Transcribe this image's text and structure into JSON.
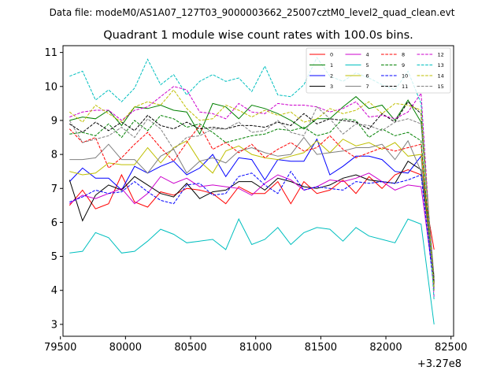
{
  "suptitle": "Data file: modeM0/AS1A07_127T03_9000003662_25007cztM0_level2_quad_clean.evt",
  "chart_data": {
    "type": "line",
    "title": "Quadrant 1 module wise count rates with 100.0s bins.",
    "xlabel": "",
    "ylabel": "",
    "x_offset_label": "+3.27e8",
    "xlim": [
      79520,
      82520
    ],
    "ylim": [
      2.65,
      11.2
    ],
    "xticks": [
      79500,
      80000,
      80500,
      81000,
      81500,
      82000,
      82500
    ],
    "yticks": [
      3,
      4,
      5,
      6,
      7,
      8,
      9,
      10,
      11
    ],
    "legend_location": "top-right",
    "x": [
      79570,
      79670,
      79770,
      79870,
      79970,
      80070,
      80170,
      80270,
      80370,
      80470,
      80570,
      80670,
      80770,
      80870,
      80970,
      81070,
      81170,
      81270,
      81370,
      81470,
      81570,
      81670,
      81770,
      81870,
      81970,
      82070,
      82170,
      82270,
      82370
    ],
    "series": [
      {
        "name": "0",
        "color": "#ff0000",
        "dash": "solid",
        "values": [
          6.5,
          6.95,
          6.4,
          6.55,
          7.4,
          6.6,
          6.45,
          6.9,
          6.8,
          7.0,
          6.95,
          6.85,
          6.55,
          7.05,
          6.85,
          6.85,
          7.2,
          6.55,
          7.2,
          6.85,
          6.95,
          7.25,
          6.85,
          7.35,
          7.0,
          7.4,
          7.55,
          7.4,
          5.2
        ]
      },
      {
        "name": "1",
        "color": "#008000",
        "dash": "solid",
        "values": [
          9.0,
          9.1,
          9.05,
          9.3,
          8.85,
          9.4,
          9.35,
          9.45,
          9.3,
          9.25,
          8.6,
          9.5,
          9.4,
          9.05,
          9.45,
          9.35,
          9.2,
          9.0,
          8.75,
          9.05,
          9.05,
          9.4,
          9.7,
          9.35,
          9.45,
          9.0,
          9.6,
          8.95,
          4.3
        ]
      },
      {
        "name": "2",
        "color": "#0000ff",
        "dash": "solid",
        "values": [
          7.2,
          7.6,
          7.3,
          7.3,
          6.95,
          7.65,
          7.45,
          7.65,
          7.8,
          7.4,
          7.6,
          8.0,
          7.35,
          7.9,
          7.85,
          7.25,
          7.85,
          7.8,
          7.8,
          8.45,
          7.4,
          7.65,
          7.95,
          7.95,
          7.85,
          7.5,
          7.45,
          7.95,
          4.0
        ]
      },
      {
        "name": "3",
        "color": "#000000",
        "dash": "solid",
        "values": [
          7.25,
          6.05,
          6.8,
          7.1,
          6.95,
          7.35,
          7.1,
          6.85,
          6.75,
          7.15,
          6.7,
          6.9,
          6.95,
          7.2,
          7.2,
          6.95,
          7.3,
          7.2,
          7.05,
          7.0,
          7.1,
          7.3,
          7.4,
          7.25,
          7.2,
          7.15,
          7.8,
          7.55,
          4.4
        ]
      },
      {
        "name": "4",
        "color": "#cc00cc",
        "dash": "solid",
        "values": [
          6.55,
          6.8,
          6.7,
          6.85,
          7.0,
          6.55,
          6.85,
          7.35,
          7.15,
          7.3,
          7.05,
          7.1,
          7.05,
          7.0,
          6.8,
          7.15,
          7.4,
          7.25,
          6.95,
          7.05,
          7.25,
          7.2,
          7.3,
          7.45,
          7.2,
          6.95,
          7.1,
          7.05,
          4.2
        ]
      },
      {
        "name": "5",
        "color": "#00bfbf",
        "dash": "solid",
        "values": [
          5.1,
          5.15,
          5.7,
          5.55,
          5.1,
          5.15,
          5.45,
          5.8,
          5.65,
          5.4,
          5.45,
          5.5,
          5.2,
          6.1,
          5.35,
          5.5,
          5.85,
          5.35,
          5.7,
          5.85,
          5.8,
          5.45,
          5.85,
          5.6,
          5.5,
          5.4,
          6.1,
          5.95,
          3.0
        ]
      },
      {
        "name": "6",
        "color": "#bfbf00",
        "dash": "solid",
        "values": [
          7.5,
          7.4,
          7.45,
          7.75,
          7.7,
          7.7,
          8.2,
          7.75,
          8.2,
          8.4,
          7.8,
          7.45,
          8.1,
          8.25,
          8.0,
          7.9,
          7.85,
          7.95,
          8.05,
          8.4,
          8.05,
          8.45,
          8.25,
          8.35,
          8.15,
          8.35,
          7.95,
          8.0,
          4.2
        ]
      },
      {
        "name": "7",
        "color": "#808080",
        "dash": "solid",
        "values": [
          7.85,
          7.85,
          7.9,
          8.3,
          7.85,
          7.85,
          7.45,
          7.95,
          8.15,
          7.45,
          7.8,
          7.9,
          7.75,
          8.1,
          8.2,
          8.05,
          7.95,
          8.0,
          8.5,
          8.0,
          8.05,
          8.1,
          8.2,
          8.2,
          8.3,
          7.85,
          8.4,
          7.5,
          4.3
        ]
      },
      {
        "name": "8",
        "color": "#ff0000",
        "dash": "dashed",
        "values": [
          8.75,
          8.35,
          8.5,
          7.6,
          7.9,
          8.3,
          8.65,
          8.2,
          7.8,
          8.35,
          8.85,
          8.15,
          8.35,
          8.05,
          8.3,
          7.9,
          8.15,
          8.35,
          8.1,
          8.2,
          8.55,
          8.15,
          7.9,
          8.05,
          8.2,
          8.1,
          8.2,
          8.3,
          4.1
        ]
      },
      {
        "name": "9",
        "color": "#008000",
        "dash": "dashed",
        "values": [
          8.6,
          8.65,
          8.55,
          8.9,
          8.5,
          9.0,
          8.7,
          9.15,
          9.05,
          8.8,
          8.9,
          8.65,
          8.35,
          8.45,
          8.55,
          8.6,
          8.75,
          8.7,
          8.8,
          8.55,
          8.65,
          9.05,
          9.0,
          8.5,
          8.75,
          8.55,
          8.65,
          8.4,
          4.1
        ]
      },
      {
        "name": "10",
        "color": "#0000ff",
        "dash": "dashed",
        "values": [
          6.6,
          6.75,
          6.95,
          6.85,
          6.9,
          7.2,
          6.9,
          6.65,
          6.55,
          7.1,
          7.15,
          6.8,
          6.85,
          7.35,
          7.45,
          7.1,
          6.85,
          7.5,
          6.95,
          7.05,
          7.0,
          6.95,
          7.2,
          7.15,
          7.2,
          7.15,
          7.25,
          7.4,
          4.0
        ]
      },
      {
        "name": "11",
        "color": "#000000",
        "dash": "dashed",
        "values": [
          8.9,
          8.65,
          8.95,
          8.7,
          8.95,
          8.7,
          9.15,
          8.85,
          8.75,
          8.95,
          8.75,
          8.8,
          8.75,
          8.85,
          8.85,
          8.8,
          8.95,
          8.85,
          9.2,
          8.9,
          9.05,
          9.0,
          8.95,
          8.75,
          9.2,
          8.95,
          9.55,
          9.2,
          4.2
        ]
      },
      {
        "name": "12",
        "color": "#cc00cc",
        "dash": "dashed",
        "values": [
          9.1,
          9.25,
          9.3,
          9.3,
          9.0,
          9.3,
          9.4,
          9.7,
          10.0,
          9.9,
          9.25,
          9.2,
          9.05,
          9.5,
          9.25,
          9.2,
          9.5,
          9.45,
          9.45,
          9.4,
          9.25,
          9.35,
          9.55,
          9.1,
          9.15,
          9.05,
          9.25,
          9.8,
          3.8
        ]
      },
      {
        "name": "13",
        "color": "#00bfbf",
        "dash": "dashed",
        "values": [
          10.3,
          10.45,
          9.6,
          9.9,
          9.55,
          9.95,
          10.8,
          10.05,
          10.35,
          9.75,
          10.15,
          10.35,
          10.15,
          10.25,
          9.85,
          10.6,
          9.75,
          9.7,
          10.05,
          10.85,
          10.3,
          10.15,
          10.4,
          10.25,
          10.05,
          9.9,
          10.45,
          9.5,
          3.7
        ]
      },
      {
        "name": "14",
        "color": "#bfbf00",
        "dash": "dashed",
        "values": [
          9.25,
          8.95,
          9.45,
          9.2,
          8.95,
          9.4,
          9.55,
          9.45,
          9.9,
          9.35,
          9.0,
          9.05,
          9.45,
          9.3,
          9.1,
          9.3,
          9.15,
          9.25,
          8.95,
          9.05,
          9.35,
          9.2,
          9.3,
          9.55,
          9.2,
          9.5,
          9.45,
          9.3,
          4.0
        ]
      },
      {
        "name": "15",
        "color": "#808080",
        "dash": "dashed",
        "values": [
          9.0,
          8.35,
          8.45,
          8.55,
          8.8,
          8.5,
          9.05,
          8.75,
          8.15,
          8.5,
          8.55,
          8.75,
          8.75,
          8.95,
          8.65,
          8.7,
          9.0,
          8.65,
          8.55,
          9.4,
          9.05,
          8.6,
          8.9,
          8.85,
          8.7,
          8.95,
          9.05,
          8.9,
          4.4
        ]
      }
    ]
  }
}
